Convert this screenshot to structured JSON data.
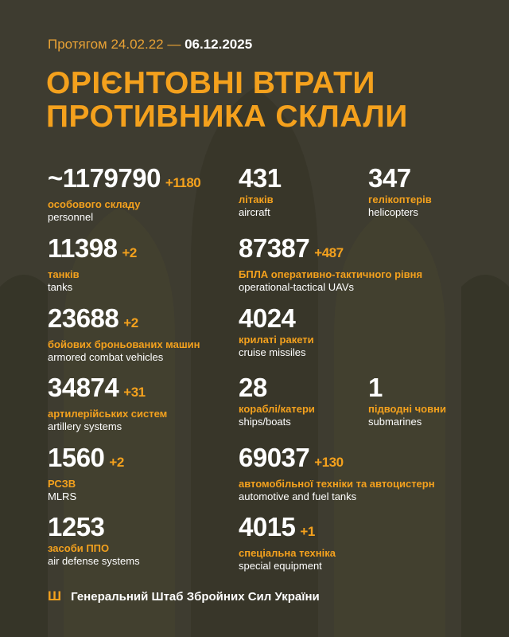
{
  "header": {
    "period_prefix": "Протягом 24.02.22 —",
    "period_end": "06.12.2025",
    "title_line1": "ОРІЄНТОВНІ ВТРАТИ",
    "title_line2": "ПРОТИВНИКА СКЛАЛИ"
  },
  "stats": [
    {
      "value": "~1179790",
      "delta": "+1180",
      "ua": "особового складу",
      "en": "personnel"
    },
    {
      "value": "431",
      "delta": "",
      "ua": "літаків",
      "en": "aircraft"
    },
    {
      "value": "347",
      "delta": "",
      "ua": "гелікоптерів",
      "en": "helicopters"
    },
    {
      "value": "11398",
      "delta": "+2",
      "ua": "танків",
      "en": "tanks"
    },
    {
      "value": "87387",
      "delta": "+487",
      "ua": "БПЛА оперативно-тактичного рівня",
      "en": "operational-tactical UAVs"
    },
    {
      "value": "23688",
      "delta": "+2",
      "ua": "бойових броньованих машин",
      "en": "armored combat vehicles"
    },
    {
      "value": "4024",
      "delta": "",
      "ua": "крилаті ракети",
      "en": "cruise missiles"
    },
    {
      "value": "34874",
      "delta": "+31",
      "ua": "артилерійських систем",
      "en": "artillery systems"
    },
    {
      "value": "28",
      "delta": "",
      "ua": "кораблі/катери",
      "en": "ships/boats"
    },
    {
      "value": "1",
      "delta": "",
      "ua": "підводні човни",
      "en": "submarines"
    },
    {
      "value": "1560",
      "delta": "+2",
      "ua": "РСЗВ",
      "en": "MLRS"
    },
    {
      "value": "69037",
      "delta": "+130",
      "ua": "автомобільної техніки та автоцистерн",
      "en": "automotive and fuel tanks"
    },
    {
      "value": "1253",
      "delta": "",
      "ua": "засоби ППО",
      "en": "air defense systems"
    },
    {
      "value": "4015",
      "delta": "+1",
      "ua": "спеціальна техніка",
      "en": "special equipment"
    }
  ],
  "footer": {
    "icon": "trident-icon",
    "text": "Генеральний Штаб Збройних Сил України"
  },
  "colors": {
    "background": "#3e3c30",
    "accent": "#f4a11d",
    "text": "#ffffff"
  }
}
